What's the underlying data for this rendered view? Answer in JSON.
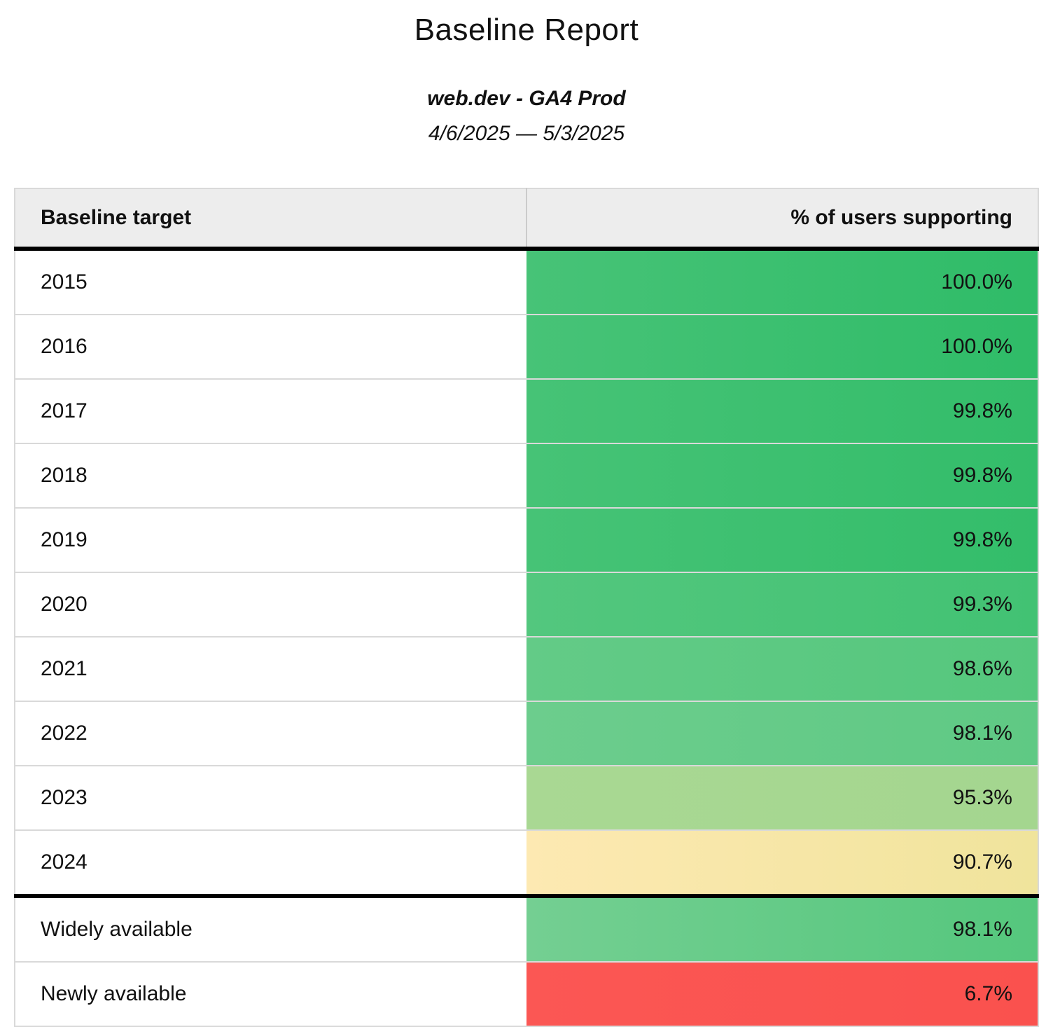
{
  "report": {
    "title": "Baseline Report",
    "subtitle": "web.dev - GA4 Prod",
    "date_range": "4/6/2025 — 5/3/2025"
  },
  "table": {
    "header": {
      "target": "Baseline target",
      "value": "% of users supporting"
    },
    "rows": [
      {
        "target": "2015",
        "value": "100.0%",
        "color_left": "#47c377",
        "color_right": "#2fbc68"
      },
      {
        "target": "2016",
        "value": "100.0%",
        "color_left": "#47c377",
        "color_right": "#2fbc68"
      },
      {
        "target": "2017",
        "value": "99.8%",
        "color_left": "#46c376",
        "color_right": "#33bd6a"
      },
      {
        "target": "2018",
        "value": "99.8%",
        "color_left": "#46c376",
        "color_right": "#33bd6a"
      },
      {
        "target": "2019",
        "value": "99.8%",
        "color_left": "#46c376",
        "color_right": "#33bd6a"
      },
      {
        "target": "2020",
        "value": "99.3%",
        "color_left": "#53c77e",
        "color_right": "#42c273"
      },
      {
        "target": "2021",
        "value": "98.6%",
        "color_left": "#63cb87",
        "color_right": "#55c77d"
      },
      {
        "target": "2022",
        "value": "98.1%",
        "color_left": "#6ccd8d",
        "color_right": "#5fc984"
      },
      {
        "target": "2023",
        "value": "95.3%",
        "color_left": "#a9d893",
        "color_right": "#a4d68f"
      },
      {
        "target": "2024",
        "value": "90.7%",
        "color_left": "#fde9b2",
        "color_right": "#f0e49c"
      },
      {
        "target": "Widely available",
        "value": "98.1%",
        "color_left": "#74cf92",
        "color_right": "#55c77d"
      },
      {
        "target": "Newly available",
        "value": "6.7%",
        "color_left": "#fb5754",
        "color_right": "#fa514e"
      }
    ]
  },
  "colors": {
    "header_bg": "#ededed",
    "row_separator": "#d9d9d9",
    "header_divider": "#cbcbcb",
    "strong_border": "#000000",
    "green_high": "#2fbc68",
    "yellow_mid": "#f5e6a7",
    "red_low": "#fa524f"
  },
  "chart_data": {
    "type": "table",
    "title": "Baseline Report",
    "subtitle": "web.dev - GA4 Prod",
    "date_range": "4/6/2025 — 5/3/2025",
    "columns": [
      "Baseline target",
      "% of users supporting"
    ],
    "rows": [
      [
        "2015",
        100.0
      ],
      [
        "2016",
        100.0
      ],
      [
        "2017",
        99.8
      ],
      [
        "2018",
        99.8
      ],
      [
        "2019",
        99.8
      ],
      [
        "2020",
        99.3
      ],
      [
        "2021",
        98.6
      ],
      [
        "2022",
        98.1
      ],
      [
        "2023",
        95.3
      ],
      [
        "2024",
        90.7
      ],
      [
        "Widely available",
        98.1
      ],
      [
        "Newly available",
        6.7
      ]
    ],
    "value_unit": "%",
    "layout": "two-column table, values right-aligned, thick black rule under header row and above the availability group",
    "color_encoding": "value cell background heatmap: green (high) through yellow to red (low)"
  }
}
